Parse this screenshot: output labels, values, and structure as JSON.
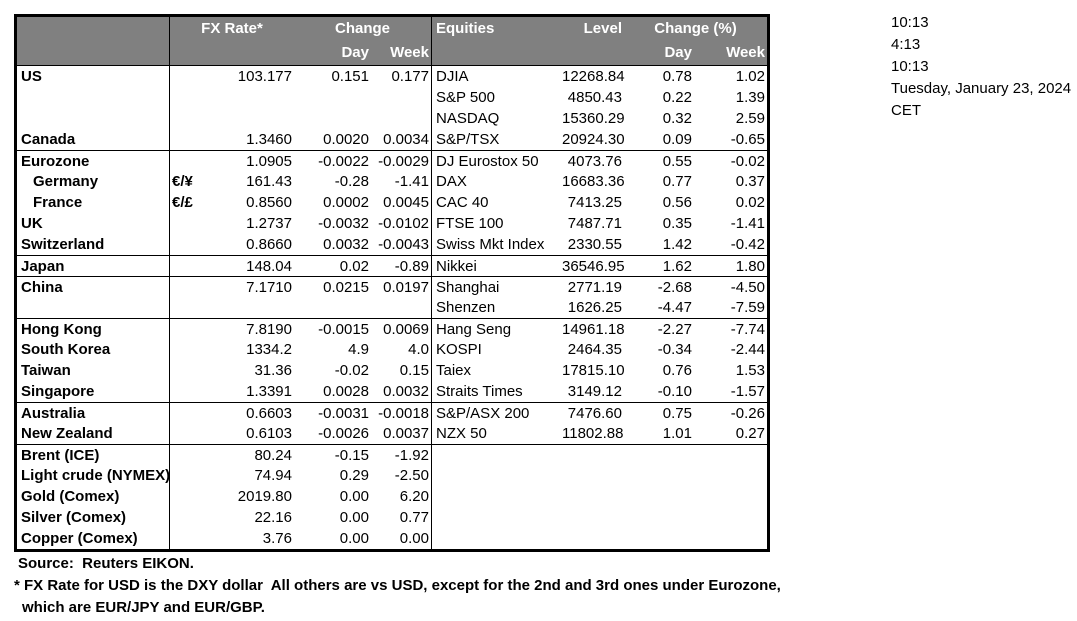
{
  "header": {
    "fx_rate_label": "FX Rate*",
    "fx_change_label": "Change",
    "fx_day_label": "Day",
    "fx_week_label": "Week",
    "equities_label": "Equities",
    "level_label": "Level",
    "eq_change_label": "Change (%)",
    "eq_day_label": "Day",
    "eq_week_label": "Week"
  },
  "timestamps": {
    "lines": [
      "10:13",
      "4:13",
      "10:13",
      "Tuesday, January 23, 2024",
      "CET"
    ]
  },
  "rows": [
    {
      "country": "US",
      "indent": false,
      "pair": "",
      "fx": "103.177",
      "fx_day": "0.151",
      "fx_week": "0.177",
      "equity": "DJIA",
      "level": "12268.84",
      "eq_day": "0.78",
      "eq_week": "1.02",
      "group_start": false
    },
    {
      "country": "",
      "indent": false,
      "pair": "",
      "fx": "",
      "fx_day": "",
      "fx_week": "",
      "equity": "S&P 500",
      "level": "4850.43",
      "eq_day": "0.22",
      "eq_week": "1.39",
      "group_start": false
    },
    {
      "country": "",
      "indent": false,
      "pair": "",
      "fx": "",
      "fx_day": "",
      "fx_week": "",
      "equity": "NASDAQ",
      "level": "15360.29",
      "eq_day": "0.32",
      "eq_week": "2.59",
      "group_start": false
    },
    {
      "country": "Canada",
      "indent": false,
      "pair": "",
      "fx": "1.3460",
      "fx_day": "0.0020",
      "fx_week": "0.0034",
      "equity": "S&P/TSX",
      "level": "20924.30",
      "eq_day": "0.09",
      "eq_week": "-0.65",
      "group_start": false
    },
    {
      "country": "Eurozone",
      "indent": false,
      "pair": "",
      "fx": "1.0905",
      "fx_day": "-0.0022",
      "fx_week": "-0.0029",
      "equity": "DJ Eurostox 50",
      "level": "4073.76",
      "eq_day": "0.55",
      "eq_week": "-0.02",
      "group_start": true
    },
    {
      "country": "Germany",
      "indent": true,
      "pair": "€/¥",
      "fx": "161.43",
      "fx_day": "-0.28",
      "fx_week": "-1.41",
      "equity": "DAX",
      "level": "16683.36",
      "eq_day": "0.77",
      "eq_week": "0.37",
      "group_start": false
    },
    {
      "country": "France",
      "indent": true,
      "pair": "€/£",
      "fx": "0.8560",
      "fx_day": "0.0002",
      "fx_week": "0.0045",
      "equity": "CAC 40",
      "level": "7413.25",
      "eq_day": "0.56",
      "eq_week": "0.02",
      "group_start": false
    },
    {
      "country": "UK",
      "indent": false,
      "pair": "",
      "fx": "1.2737",
      "fx_day": "-0.0032",
      "fx_week": "-0.0102",
      "equity": "FTSE 100",
      "level": "7487.71",
      "eq_day": "0.35",
      "eq_week": "-1.41",
      "group_start": false
    },
    {
      "country": "Switzerland",
      "indent": false,
      "pair": "",
      "fx": "0.8660",
      "fx_day": "0.0032",
      "fx_week": "-0.0043",
      "equity": "Swiss Mkt Index",
      "level": "2330.55",
      "eq_day": "1.42",
      "eq_week": "-0.42",
      "group_start": false
    },
    {
      "country": "Japan",
      "indent": false,
      "pair": "",
      "fx": "148.04",
      "fx_day": "0.02",
      "fx_week": "-0.89",
      "equity": "Nikkei",
      "level": "36546.95",
      "eq_day": "1.62",
      "eq_week": "1.80",
      "group_start": true
    },
    {
      "country": "China",
      "indent": false,
      "pair": "",
      "fx": "7.1710",
      "fx_day": "0.0215",
      "fx_week": "0.0197",
      "equity": "Shanghai",
      "level": "2771.19",
      "eq_day": "-2.68",
      "eq_week": "-4.50",
      "group_start": true
    },
    {
      "country": "",
      "indent": false,
      "pair": "",
      "fx": "",
      "fx_day": "",
      "fx_week": "",
      "equity": "Shenzen",
      "level": "1626.25",
      "eq_day": "-4.47",
      "eq_week": "-7.59",
      "group_start": false
    },
    {
      "country": "Hong Kong",
      "indent": false,
      "pair": "",
      "fx": "7.8190",
      "fx_day": "-0.0015",
      "fx_week": "0.0069",
      "equity": "Hang Seng",
      "level": "14961.18",
      "eq_day": "-2.27",
      "eq_week": "-7.74",
      "group_start": true
    },
    {
      "country": "South Korea",
      "indent": false,
      "pair": "",
      "fx": "1334.2",
      "fx_day": "4.9",
      "fx_week": "4.0",
      "equity": "KOSPI",
      "level": "2464.35",
      "eq_day": "-0.34",
      "eq_week": "-2.44",
      "group_start": false
    },
    {
      "country": "Taiwan",
      "indent": false,
      "pair": "",
      "fx": "31.36",
      "fx_day": "-0.02",
      "fx_week": "0.15",
      "equity": "Taiex",
      "level": "17815.10",
      "eq_day": "0.76",
      "eq_week": "1.53",
      "group_start": false
    },
    {
      "country": "Singapore",
      "indent": false,
      "pair": "",
      "fx": "1.3391",
      "fx_day": "0.0028",
      "fx_week": "0.0032",
      "equity": "Straits Times",
      "level": "3149.12",
      "eq_day": "-0.10",
      "eq_week": "-1.57",
      "group_start": false
    },
    {
      "country": "Australia",
      "indent": false,
      "pair": "",
      "fx": "0.6603",
      "fx_day": "-0.0031",
      "fx_week": "-0.0018",
      "equity": "S&P/ASX 200",
      "level": "7476.60",
      "eq_day": "0.75",
      "eq_week": "-0.26",
      "group_start": true
    },
    {
      "country": "New Zealand",
      "indent": false,
      "pair": "",
      "fx": "0.6103",
      "fx_day": "-0.0026",
      "fx_week": "0.0037",
      "equity": "NZX 50",
      "level": "11802.88",
      "eq_day": "1.01",
      "eq_week": "0.27",
      "group_start": false
    },
    {
      "country": "Brent (ICE)",
      "indent": false,
      "pair": "",
      "fx": "80.24",
      "fx_day": "-0.15",
      "fx_week": "-1.92",
      "equity": "",
      "level": "",
      "eq_day": "",
      "eq_week": "",
      "group_start": true
    },
    {
      "country": "Light crude (NYMEX)",
      "indent": false,
      "pair": "",
      "fx": "74.94",
      "fx_day": "0.29",
      "fx_week": "-2.50",
      "equity": "",
      "level": "",
      "eq_day": "",
      "eq_week": "",
      "group_start": false
    },
    {
      "country": "Gold (Comex)",
      "indent": false,
      "pair": "",
      "fx": "2019.80",
      "fx_day": "0.00",
      "fx_week": "6.20",
      "equity": "",
      "level": "",
      "eq_day": "",
      "eq_week": "",
      "group_start": false
    },
    {
      "country": "Silver (Comex)",
      "indent": false,
      "pair": "",
      "fx": "22.16",
      "fx_day": "0.00",
      "fx_week": "0.77",
      "equity": "",
      "level": "",
      "eq_day": "",
      "eq_week": "",
      "group_start": false
    },
    {
      "country": "Copper (Comex)",
      "indent": false,
      "pair": "",
      "fx": "3.76",
      "fx_day": "0.00",
      "fx_week": "0.00",
      "equity": "",
      "level": "",
      "eq_day": "",
      "eq_week": "",
      "group_start": false
    }
  ],
  "footer": {
    "source": "Source:  Reuters EIKON.",
    "note_line1": "* FX Rate for USD is the DXY dollar  All others are vs USD, except for the 2nd and 3rd ones under Eurozone,",
    "note_line2": "which are EUR/JPY and EUR/GBP."
  },
  "colors": {
    "header_bg": "#808080",
    "header_text": "#ffffff",
    "border": "#000000"
  }
}
